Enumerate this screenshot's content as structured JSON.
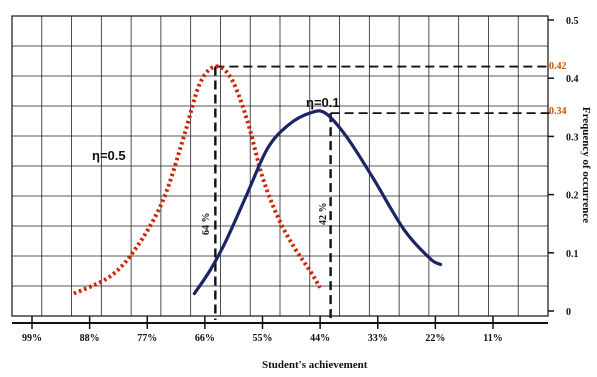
{
  "chart_data": {
    "type": "line",
    "xlabel": "Student's achievement",
    "ylabel": "Frequency of occurrence",
    "x_ticks": [
      "99%",
      "88%",
      "77%",
      "66%",
      "55%",
      "44%",
      "33%",
      "22%",
      "11%"
    ],
    "y_ticks": [
      "0",
      "0.1",
      "0.2",
      "0.3",
      "0.4",
      "0.5"
    ],
    "ylim": [
      0,
      0.5
    ],
    "grid": true,
    "colors": {
      "eta_05": "#cc2200",
      "eta_01": "#1a2466",
      "peak_label": "#cc5500"
    },
    "series": [
      {
        "name": "η=0.5",
        "style": "dotted",
        "points": [
          [
            91,
            0.03
          ],
          [
            84,
            0.06
          ],
          [
            79,
            0.11
          ],
          [
            74,
            0.19
          ],
          [
            70,
            0.3
          ],
          [
            67,
            0.39
          ],
          [
            64,
            0.42
          ],
          [
            61,
            0.4
          ],
          [
            58,
            0.33
          ],
          [
            55,
            0.23
          ],
          [
            52,
            0.16
          ],
          [
            49,
            0.11
          ],
          [
            46,
            0.07
          ],
          [
            44,
            0.04
          ]
        ]
      },
      {
        "name": "η=0.1",
        "style": "solid",
        "points": [
          [
            68,
            0.03
          ],
          [
            65,
            0.07
          ],
          [
            62,
            0.12
          ],
          [
            58,
            0.2
          ],
          [
            54,
            0.28
          ],
          [
            50,
            0.32
          ],
          [
            46,
            0.34
          ],
          [
            43,
            0.34
          ],
          [
            39,
            0.3
          ],
          [
            34,
            0.23
          ],
          [
            28,
            0.14
          ],
          [
            23,
            0.09
          ],
          [
            21,
            0.08
          ]
        ]
      }
    ],
    "annotations": {
      "peak1_value": "0.42",
      "peak2_value": "0.34",
      "pct1": "64 %",
      "pct2": "42 %",
      "pct1_x": 64,
      "pct2_x": 42
    }
  }
}
